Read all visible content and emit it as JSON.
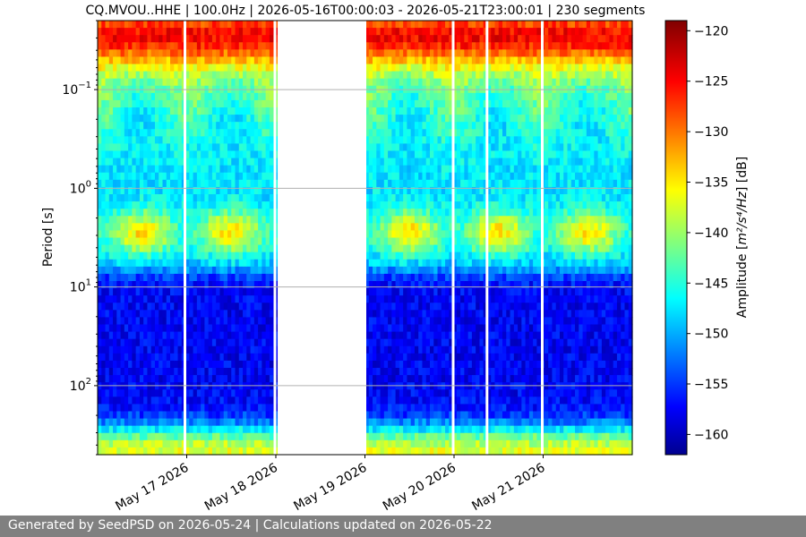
{
  "footer": {
    "text": "Generated by SeedPSD on 2026-05-24 | Calculations updated on 2026-05-22"
  },
  "chart_data": {
    "type": "heatmap",
    "title": "CQ.MVOU..HHE | 100.0Hz | 2026-05-16T00:00:03 - 2026-05-21T23:00:01 | 230 segments",
    "xlabel": "",
    "ylabel": "Period [s]",
    "y_scale": "log",
    "y_inverted": true,
    "ylim": [
      0.02,
      500
    ],
    "xlim": [
      "2026-05-16T00:00:00",
      "2026-05-22T00:00:00"
    ],
    "x_ticks": [
      "May 17 2026",
      "May 18 2026",
      "May 19 2026",
      "May 20 2026",
      "May 21 2026"
    ],
    "y_ticks": [
      {
        "value": 0.1,
        "base": "10",
        "exp": "−1"
      },
      {
        "value": 1,
        "base": "10",
        "exp": "0"
      },
      {
        "value": 10,
        "base": "10",
        "exp": "1"
      },
      {
        "value": 100,
        "base": "10",
        "exp": "2"
      }
    ],
    "grid": true,
    "data_gap": [
      "2026-05-18T00:00:00",
      "2026-05-19T00:00:00"
    ],
    "colorbar": {
      "label_prefix": "Amplitude [",
      "label_math": "m²/s⁴/Hz",
      "label_suffix": "] [dB]",
      "min": -162,
      "max": -119,
      "ticks": [
        -120,
        -125,
        -130,
        -135,
        -140,
        -145,
        -150,
        -155,
        -160
      ],
      "tick_labels": [
        "−120",
        "−125",
        "−130",
        "−135",
        "−140",
        "−145",
        "−150",
        "−155",
        "−160"
      ],
      "colormap": "jet"
    }
  }
}
